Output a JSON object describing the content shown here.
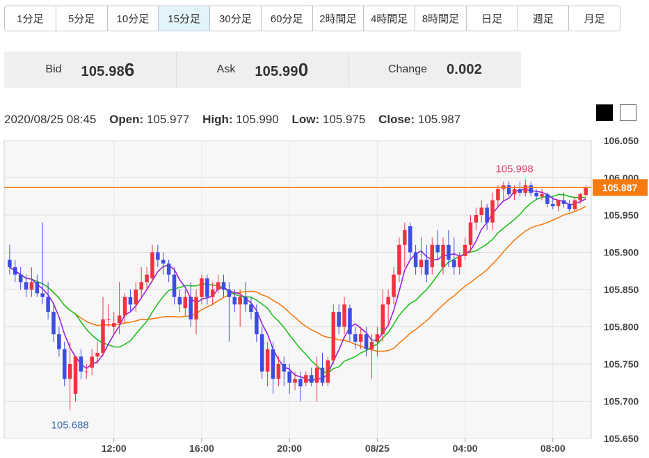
{
  "timeframes": {
    "tabs": [
      "1分足",
      "5分足",
      "10分足",
      "15分足",
      "30分足",
      "60分足",
      "2時間足",
      "4時間足",
      "8時間足",
      "日足",
      "週足",
      "月足"
    ],
    "active": "15分足"
  },
  "quote": {
    "bid_label": "Bid",
    "bid_main": "105.98",
    "bid_big": "6",
    "ask_label": "Ask",
    "ask_main": "105.99",
    "ask_big": "0",
    "change_label": "Change",
    "change_value": "0.002"
  },
  "ohlc": {
    "datetime": "2020/08/25 08:45",
    "open_label": "Open:",
    "open": "105.977",
    "high_label": "High:",
    "high": "105.990",
    "low_label": "Low:",
    "low": "105.975",
    "close_label": "Close:",
    "close": "105.987"
  },
  "theme_buttons": [
    "dark",
    "light"
  ],
  "colors": {
    "up": "#ef3340",
    "down": "#3d4de0",
    "ma_fast": "#9a1ee0",
    "ma_mid": "#1fc01f",
    "ma_slow": "#f57a10",
    "price_line": "#f57a10",
    "high_label": "#e0426a",
    "low_label": "#3a6ab0"
  },
  "chart_data": {
    "type": "candlestick",
    "ylim": [
      105.65,
      106.05
    ],
    "y_ticks": [
      "106.050",
      "106.000",
      "105.950",
      "105.900",
      "105.850",
      "105.800",
      "105.750",
      "105.700",
      "105.650"
    ],
    "x_ticks": [
      {
        "index": 19,
        "label": "12:00"
      },
      {
        "index": 35,
        "label": "16:00"
      },
      {
        "index": 51,
        "label": "20:00"
      },
      {
        "index": 67,
        "label": "08/25"
      },
      {
        "index": 83,
        "label": "04:00"
      },
      {
        "index": 99,
        "label": "08:00"
      }
    ],
    "current_price": "105.987",
    "annotations": [
      {
        "index": 92,
        "value": 105.998,
        "label": "105.998",
        "position": "above"
      },
      {
        "index": 11,
        "value": 105.688,
        "label": "105.688",
        "position": "below"
      }
    ],
    "candles": [
      [
        105.89,
        105.91,
        105.87,
        105.88
      ],
      [
        105.88,
        105.89,
        105.86,
        105.87
      ],
      [
        105.87,
        105.88,
        105.85,
        105.86
      ],
      [
        105.86,
        105.87,
        105.84,
        105.85
      ],
      [
        105.85,
        105.88,
        105.84,
        105.86
      ],
      [
        105.86,
        105.87,
        105.84,
        105.845
      ],
      [
        105.845,
        105.94,
        105.83,
        105.84
      ],
      [
        105.84,
        105.86,
        105.81,
        105.82
      ],
      [
        105.82,
        105.83,
        105.78,
        105.79
      ],
      [
        105.79,
        105.8,
        105.76,
        105.77
      ],
      [
        105.77,
        105.78,
        105.72,
        105.73
      ],
      [
        105.73,
        105.78,
        105.688,
        105.75
      ],
      [
        105.71,
        105.76,
        105.7,
        105.76
      ],
      [
        105.76,
        105.77,
        105.73,
        105.74
      ],
      [
        105.74,
        105.75,
        105.73,
        105.74
      ],
      [
        105.745,
        105.77,
        105.735,
        105.76
      ],
      [
        105.76,
        105.78,
        105.75,
        105.765
      ],
      [
        105.765,
        105.84,
        105.76,
        105.81
      ],
      [
        105.81,
        105.83,
        105.8,
        105.81
      ],
      [
        105.8,
        105.82,
        105.79,
        105.805
      ],
      [
        105.805,
        105.86,
        105.79,
        105.815
      ],
      [
        105.815,
        105.845,
        105.805,
        105.84
      ],
      [
        105.84,
        105.85,
        105.82,
        105.83
      ],
      [
        105.83,
        105.86,
        105.82,
        105.85
      ],
      [
        105.85,
        105.88,
        105.84,
        105.86
      ],
      [
        105.86,
        105.88,
        105.85,
        105.87
      ],
      [
        105.865,
        105.91,
        105.86,
        105.9
      ],
      [
        105.9,
        105.91,
        105.88,
        105.89
      ],
      [
        105.89,
        105.9,
        105.87,
        105.885
      ],
      [
        105.885,
        105.89,
        105.86,
        105.87
      ],
      [
        105.87,
        105.88,
        105.83,
        105.84
      ],
      [
        105.84,
        105.85,
        105.82,
        105.83
      ],
      [
        105.825,
        105.85,
        105.815,
        105.84
      ],
      [
        105.84,
        105.86,
        105.8,
        105.81
      ],
      [
        105.81,
        105.85,
        105.79,
        105.84
      ],
      [
        105.84,
        105.87,
        105.83,
        105.865
      ],
      [
        105.865,
        105.87,
        105.83,
        105.84
      ],
      [
        105.84,
        105.86,
        105.83,
        105.85
      ],
      [
        105.85,
        105.87,
        105.845,
        105.86
      ],
      [
        105.86,
        105.87,
        105.84,
        105.85
      ],
      [
        105.85,
        105.86,
        105.78,
        105.84
      ],
      [
        105.84,
        105.85,
        105.82,
        105.83
      ],
      [
        105.83,
        105.85,
        105.8,
        105.84
      ],
      [
        105.84,
        105.86,
        105.82,
        105.83
      ],
      [
        105.83,
        105.84,
        105.81,
        105.82
      ],
      [
        105.82,
        105.83,
        105.78,
        105.79
      ],
      [
        105.79,
        105.8,
        105.73,
        105.74
      ],
      [
        105.74,
        105.78,
        105.72,
        105.77
      ],
      [
        105.77,
        105.78,
        105.71,
        105.73
      ],
      [
        105.73,
        105.76,
        105.72,
        105.75
      ],
      [
        105.75,
        105.76,
        105.72,
        105.74
      ],
      [
        105.74,
        105.75,
        105.71,
        105.725
      ],
      [
        105.725,
        105.74,
        105.715,
        105.73
      ],
      [
        105.73,
        105.74,
        105.7,
        105.72
      ],
      [
        105.725,
        105.74,
        105.72,
        105.735
      ],
      [
        105.735,
        105.745,
        105.72,
        105.725
      ],
      [
        105.725,
        105.76,
        105.7,
        105.745
      ],
      [
        105.745,
        105.765,
        105.72,
        105.725
      ],
      [
        105.725,
        105.76,
        105.72,
        105.755
      ],
      [
        105.755,
        105.83,
        105.75,
        105.82
      ],
      [
        105.82,
        105.83,
        105.79,
        105.8
      ],
      [
        105.8,
        105.84,
        105.79,
        105.83
      ],
      [
        105.825,
        105.83,
        105.78,
        105.79
      ],
      [
        105.79,
        105.8,
        105.77,
        105.78
      ],
      [
        105.78,
        105.8,
        105.77,
        105.79
      ],
      [
        105.79,
        105.8,
        105.76,
        105.77
      ],
      [
        105.77,
        105.79,
        105.73,
        105.78
      ],
      [
        105.78,
        105.8,
        105.76,
        105.79
      ],
      [
        105.79,
        105.85,
        105.78,
        105.83
      ],
      [
        105.83,
        105.85,
        105.8,
        105.84
      ],
      [
        105.84,
        105.88,
        105.83,
        105.87
      ],
      [
        105.87,
        105.92,
        105.86,
        105.91
      ],
      [
        105.91,
        105.94,
        105.88,
        105.93
      ],
      [
        105.935,
        105.94,
        105.89,
        105.9
      ],
      [
        105.9,
        105.91,
        105.87,
        105.88
      ],
      [
        105.88,
        105.92,
        105.87,
        105.89
      ],
      [
        105.89,
        105.91,
        105.86,
        105.87
      ],
      [
        105.88,
        105.92,
        105.87,
        105.91
      ],
      [
        105.91,
        105.93,
        105.89,
        105.9
      ],
      [
        105.88,
        105.92,
        105.87,
        105.91
      ],
      [
        105.91,
        105.93,
        105.88,
        105.89
      ],
      [
        105.89,
        105.92,
        105.87,
        105.88
      ],
      [
        105.88,
        105.9,
        105.87,
        105.895
      ],
      [
        105.895,
        105.92,
        105.89,
        105.91
      ],
      [
        105.91,
        105.95,
        105.9,
        105.94
      ],
      [
        105.94,
        105.96,
        105.93,
        105.95
      ],
      [
        105.95,
        105.97,
        105.94,
        105.96
      ],
      [
        105.96,
        105.965,
        105.93,
        105.94
      ],
      [
        105.94,
        105.98,
        105.93,
        105.97
      ],
      [
        105.97,
        105.99,
        105.96,
        105.985
      ],
      [
        105.985,
        105.995,
        105.97,
        105.99
      ],
      [
        105.99,
        105.995,
        105.975,
        105.978
      ],
      [
        105.978,
        105.99,
        105.97,
        105.985
      ],
      [
        105.985,
        105.995,
        105.975,
        105.98
      ],
      [
        105.98,
        105.998,
        105.975,
        105.99
      ],
      [
        105.99,
        105.995,
        105.975,
        105.98
      ],
      [
        105.98,
        105.985,
        105.97,
        105.975
      ],
      [
        105.975,
        105.985,
        105.97,
        105.978
      ],
      [
        105.978,
        105.98,
        105.96,
        105.965
      ],
      [
        105.965,
        105.975,
        105.958,
        105.962
      ],
      [
        105.962,
        105.97,
        105.955,
        105.97
      ],
      [
        105.97,
        105.98,
        105.96,
        105.965
      ],
      [
        105.965,
        105.97,
        105.955,
        105.958
      ],
      [
        105.958,
        105.975,
        105.955,
        105.97
      ],
      [
        105.97,
        105.98,
        105.965,
        105.978
      ],
      [
        105.977,
        105.99,
        105.975,
        105.987
      ]
    ]
  }
}
